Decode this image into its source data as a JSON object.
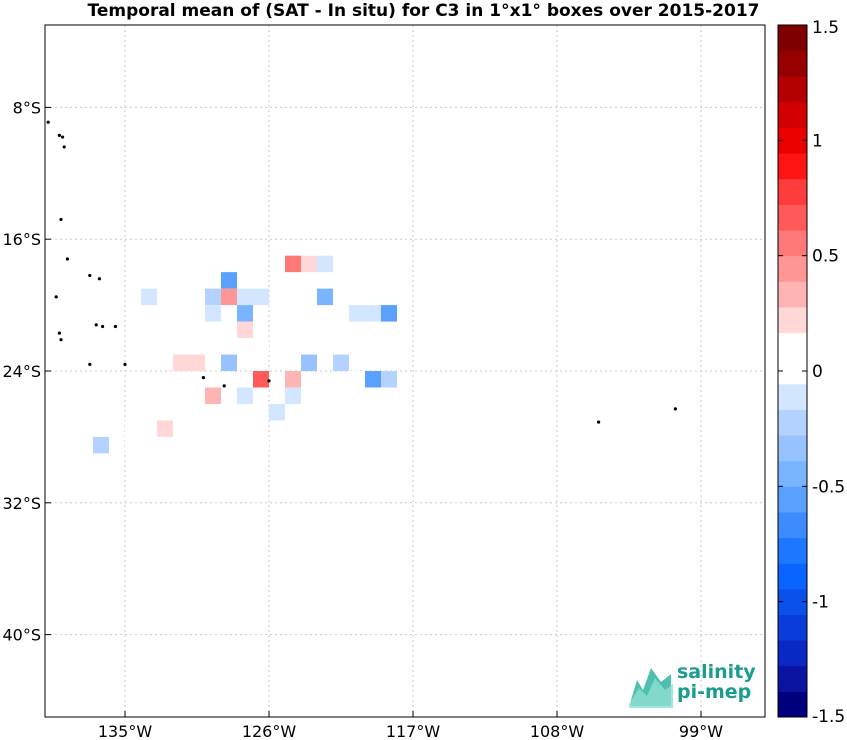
{
  "chart_data": {
    "type": "heatmap",
    "title": "Temporal mean of (SAT - In situ) for C3 in 1°x1° boxes over 2015-2017",
    "x_ticks": [
      {
        "value": -135,
        "label": "135°W"
      },
      {
        "value": -126,
        "label": "126°W"
      },
      {
        "value": -117,
        "label": "117°W"
      },
      {
        "value": -108,
        "label": "108°W"
      },
      {
        "value": -99,
        "label": "99°W"
      }
    ],
    "y_ticks": [
      {
        "value": -8,
        "label": "8°S"
      },
      {
        "value": -16,
        "label": "16°S"
      },
      {
        "value": -24,
        "label": "24°S"
      },
      {
        "value": -32,
        "label": "32°S"
      },
      {
        "value": -40,
        "label": "40°S"
      }
    ],
    "xlim": [
      -140,
      -95
    ],
    "ylim": [
      -45,
      -3
    ],
    "grid": true,
    "colorbar": {
      "range": [
        -1.5,
        1.5
      ],
      "ticks": [
        {
          "value": 1.5,
          "label": "1.5"
        },
        {
          "value": 1,
          "label": "1"
        },
        {
          "value": 0.5,
          "label": "0.5"
        },
        {
          "value": 0,
          "label": "0"
        },
        {
          "value": -0.5,
          "label": "-0.5"
        },
        {
          "value": -1,
          "label": "-1"
        },
        {
          "value": -1.5,
          "label": "-1.5"
        }
      ],
      "colors": [
        "#00007f",
        "#0a14a0",
        "#0a28c3",
        "#0a3cdc",
        "#0a50eb",
        "#0a64ff",
        "#1e78ff",
        "#3c8cff",
        "#5aa0ff",
        "#78b4ff",
        "#96c3ff",
        "#b4d2ff",
        "#d2e6ff",
        "#ffffff",
        "#ffffff",
        "#ffd7d7",
        "#ffb4b4",
        "#ff9696",
        "#ff7878",
        "#ff5a5a",
        "#ff3c3c",
        "#ff1414",
        "#eb0000",
        "#d20000",
        "#b40000",
        "#960000",
        "#7f0000"
      ]
    },
    "cells": [
      {
        "lon": -128.5,
        "lat": -18.5,
        "value": -0.55
      },
      {
        "lon": -124.5,
        "lat": -17.5,
        "value": 0.55
      },
      {
        "lon": -123.5,
        "lat": -17.5,
        "value": 0.2
      },
      {
        "lon": -122.5,
        "lat": -17.5,
        "value": -0.1
      },
      {
        "lon": -133.5,
        "lat": -19.5,
        "value": -0.1
      },
      {
        "lon": -130.5,
        "lat": -19.5,
        "value": 0.15
      },
      {
        "lon": -129.5,
        "lat": -19.5,
        "value": -0.2
      },
      {
        "lon": -128.5,
        "lat": -19.5,
        "value": 0.45
      },
      {
        "lon": -127.5,
        "lat": -19.5,
        "value": -0.1
      },
      {
        "lon": -126.5,
        "lat": -19.5,
        "value": -0.1
      },
      {
        "lon": -122.5,
        "lat": -19.5,
        "value": -0.45
      },
      {
        "lon": -129.5,
        "lat": -20.5,
        "value": -0.1
      },
      {
        "lon": -127.5,
        "lat": -20.5,
        "value": -0.5
      },
      {
        "lon": -120.5,
        "lat": -20.5,
        "value": -0.1
      },
      {
        "lon": -119.5,
        "lat": -20.5,
        "value": -0.1
      },
      {
        "lon": -118.5,
        "lat": -20.5,
        "value": -0.6
      },
      {
        "lon": -127.5,
        "lat": -21.5,
        "value": 0.25
      },
      {
        "lon": -120.5,
        "lat": -21.5,
        "value": 0.15
      },
      {
        "lon": -126.5,
        "lat": -22.5,
        "value": 0.15
      },
      {
        "lon": -131.5,
        "lat": -23.5,
        "value": 0.2
      },
      {
        "lon": -130.5,
        "lat": -23.5,
        "value": 0.2
      },
      {
        "lon": -128.5,
        "lat": -23.5,
        "value": -0.3
      },
      {
        "lon": -123.5,
        "lat": -23.5,
        "value": -0.3
      },
      {
        "lon": -121.5,
        "lat": -23.5,
        "value": -0.25
      },
      {
        "lon": -126.5,
        "lat": -24.5,
        "value": 0.65
      },
      {
        "lon": -124.5,
        "lat": -24.5,
        "value": 0.35
      },
      {
        "lon": -120.5,
        "lat": -24.5,
        "value": 0.15
      },
      {
        "lon": -119.5,
        "lat": -24.5,
        "value": -0.55
      },
      {
        "lon": -118.5,
        "lat": -24.5,
        "value": -0.2
      },
      {
        "lon": -129.5,
        "lat": -25.5,
        "value": 0.35
      },
      {
        "lon": -127.5,
        "lat": -25.5,
        "value": -0.1
      },
      {
        "lon": -124.5,
        "lat": -25.5,
        "value": -0.1
      },
      {
        "lon": -125.5,
        "lat": -26.5,
        "value": -0.1
      },
      {
        "lon": -134.5,
        "lat": -27.5,
        "value": 0.15
      },
      {
        "lon": -132.5,
        "lat": -27.5,
        "value": 0.2
      },
      {
        "lon": -134.5,
        "lat": -28.5,
        "value": 0.15
      },
      {
        "lon": -136.5,
        "lat": -28.5,
        "value": -0.25
      },
      {
        "lon": -127.5,
        "lat": -28.5,
        "value": 0.15
      },
      {
        "lon": -126.5,
        "lat": -28.5,
        "value": 0.15
      }
    ],
    "islands": [
      {
        "lon": -139.8,
        "lat": -8.9
      },
      {
        "lon": -139.1,
        "lat": -9.7
      },
      {
        "lon": -138.9,
        "lat": -9.8
      },
      {
        "lon": -138.8,
        "lat": -10.4
      },
      {
        "lon": -139.0,
        "lat": -14.8
      },
      {
        "lon": -138.6,
        "lat": -17.2
      },
      {
        "lon": -137.2,
        "lat": -18.2
      },
      {
        "lon": -136.6,
        "lat": -18.4
      },
      {
        "lon": -139.3,
        "lat": -19.5
      },
      {
        "lon": -136.8,
        "lat": -21.2
      },
      {
        "lon": -136.4,
        "lat": -21.3
      },
      {
        "lon": -135.6,
        "lat": -21.3
      },
      {
        "lon": -139.1,
        "lat": -21.7
      },
      {
        "lon": -139.0,
        "lat": -22.1
      },
      {
        "lon": -137.2,
        "lat": -23.6
      },
      {
        "lon": -135.0,
        "lat": -23.6
      },
      {
        "lon": -130.1,
        "lat": -24.4
      },
      {
        "lon": -128.8,
        "lat": -24.9
      },
      {
        "lon": -126.0,
        "lat": -24.6
      },
      {
        "lon": -105.4,
        "lat": -27.1
      },
      {
        "lon": -100.6,
        "lat": -26.3
      }
    ]
  },
  "logo": {
    "line1": "salinity",
    "line2": "pi-mep"
  }
}
